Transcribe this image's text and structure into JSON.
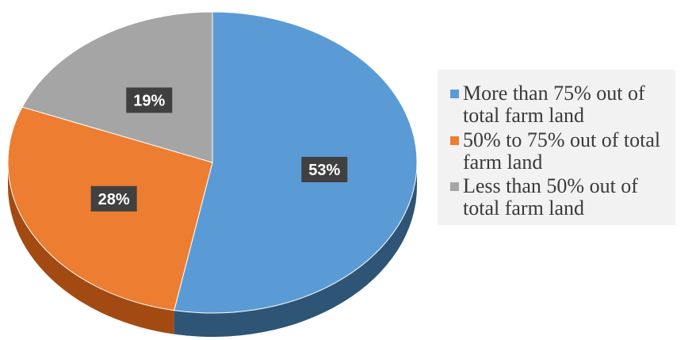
{
  "chart_data": {
    "type": "pie",
    "title": "",
    "legend_position": "right",
    "series": [
      {
        "name": "More than 75% out of total farm land",
        "value": 53,
        "label": "53%",
        "color": "#5b9bd5",
        "side_color": "#2e5576"
      },
      {
        "name": "50% to 75% out of total farm land",
        "value": 28,
        "label": "28%",
        "color": "#ed7d31",
        "side_color": "#a34a12"
      },
      {
        "name": "Less than 50% out of total farm land",
        "value": 19,
        "label": "19%",
        "color": "#a5a5a5",
        "side_color": "#6e6e6e"
      }
    ],
    "legend": [
      "More than 75% out of total farm land",
      "50% to 75% out of total farm land",
      "Less than 50% out of total farm land"
    ]
  }
}
